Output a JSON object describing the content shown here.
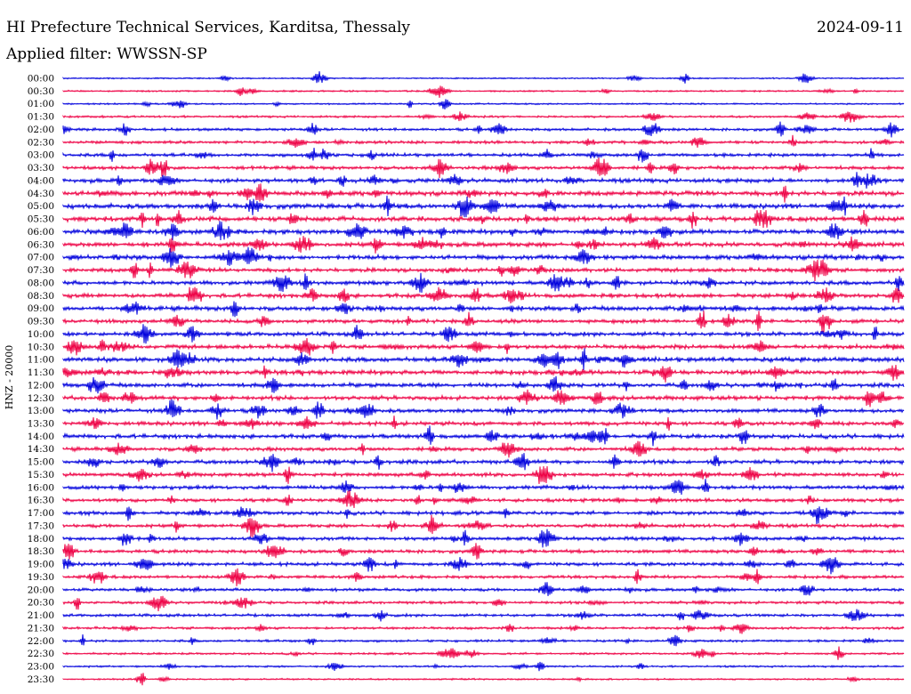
{
  "header": {
    "station": "HI Prefecture Technical Services, Karditsa, Thessaly",
    "date": "2024-09-11",
    "filter": "Applied filter: WWSSN-SP"
  },
  "chart_data": {
    "type": "line",
    "title": "HI Prefecture Technical Services, Karditsa, Thessaly",
    "subtitle": "Applied filter: WWSSN-SP",
    "ylabel": "HNZ - 20000",
    "row_labels": [
      "00:00",
      "00:30",
      "01:00",
      "01:30",
      "02:00",
      "02:30",
      "03:00",
      "03:30",
      "04:00",
      "04:30",
      "05:00",
      "05:30",
      "06:00",
      "06:30",
      "07:00",
      "07:30",
      "08:00",
      "08:30",
      "09:00",
      "09:30",
      "10:00",
      "10:30",
      "11:00",
      "11:30",
      "12:00",
      "12:30",
      "13:00",
      "13:30",
      "14:00",
      "14:30",
      "15:00",
      "15:30",
      "16:00",
      "16:30",
      "17:00",
      "17:30",
      "18:00",
      "18:30",
      "19:00",
      "19:30",
      "20:00",
      "20:30",
      "21:00",
      "21:30",
      "22:00",
      "22:30",
      "23:00",
      "23:30"
    ],
    "trace_colors": [
      "#0000dd",
      "#ee0044"
    ],
    "activity_level": [
      0.15,
      0.2,
      0.2,
      0.3,
      0.45,
      0.5,
      0.55,
      0.6,
      0.75,
      0.85,
      0.9,
      0.9,
      0.85,
      0.85,
      0.8,
      0.7,
      0.75,
      0.75,
      0.8,
      0.7,
      0.7,
      0.75,
      0.85,
      0.85,
      0.75,
      0.75,
      0.7,
      0.7,
      0.75,
      0.65,
      0.7,
      0.65,
      0.65,
      0.6,
      0.65,
      0.6,
      0.6,
      0.6,
      0.6,
      0.5,
      0.5,
      0.45,
      0.45,
      0.4,
      0.35,
      0.3,
      0.25,
      0.2
    ],
    "grid": false
  }
}
